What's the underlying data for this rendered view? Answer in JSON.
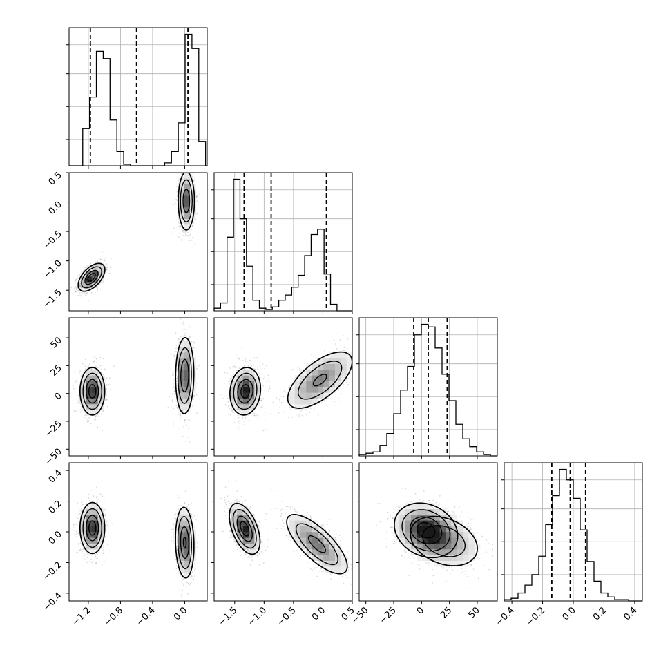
{
  "chart_data": {
    "type": "corner",
    "title": "",
    "parameters": [
      {
        "index": 0,
        "label": "",
        "range": [
          -1.44,
          0.28
        ],
        "ticks": [
          "−1.2",
          "−0.8",
          "−0.4",
          "0.0"
        ],
        "tick_values": [
          -1.2,
          -0.8,
          -0.4,
          0.0
        ]
      },
      {
        "index": 1,
        "label": "",
        "range": [
          -1.85,
          0.5
        ],
        "ticks": [
          "−1.5",
          "−1.0",
          "−0.5",
          "0.0",
          "0.5"
        ],
        "tick_values": [
          -1.5,
          -1.0,
          -0.5,
          0.0,
          0.5
        ]
      },
      {
        "index": 2,
        "label": "",
        "range": [
          -56,
          68
        ],
        "ticks": [
          "−50",
          "−25",
          "0",
          "25",
          "50"
        ],
        "tick_values": [
          -50,
          -25,
          0,
          25,
          50
        ]
      },
      {
        "index": 3,
        "label": "",
        "range": [
          -0.45,
          0.45
        ],
        "ticks": [
          "−0.4",
          "−0.2",
          "0.0",
          "0.2",
          "0.4"
        ],
        "tick_values": [
          -0.4,
          -0.2,
          0.0,
          0.2,
          0.4
        ]
      }
    ],
    "histograms": [
      {
        "param": 0,
        "bin_edges": [
          -1.44,
          -1.355,
          -1.27,
          -1.185,
          -1.1,
          -1.015,
          -0.93,
          -0.845,
          -0.76,
          -0.675,
          -0.59,
          -0.505,
          -0.42,
          -0.335,
          -0.25,
          -0.165,
          -0.08,
          0.005,
          0.09,
          0.175,
          0.26
        ],
        "counts": [
          0,
          0,
          26,
          48,
          80,
          75,
          32,
          10,
          1,
          0,
          0,
          0,
          0,
          0,
          2,
          10,
          30,
          92,
          82,
          17
        ],
        "quantiles": [
          -1.175,
          -0.6,
          0.04
        ]
      },
      {
        "param": 1,
        "bin_edges": [
          -1.85,
          -1.74,
          -1.63,
          -1.52,
          -1.41,
          -1.3,
          -1.19,
          -1.08,
          -0.97,
          -0.86,
          -0.75,
          -0.64,
          -0.53,
          -0.42,
          -0.31,
          -0.2,
          -0.09,
          0.02,
          0.13,
          0.24,
          0.35
        ],
        "counts": [
          2,
          6,
          56,
          100,
          70,
          34,
          8,
          2,
          1,
          3,
          8,
          12,
          18,
          27,
          42,
          58,
          62,
          28,
          5,
          0
        ],
        "quantiles": [
          -1.34,
          -0.88,
          0.06
        ]
      },
      {
        "param": 2,
        "bin_edges": [
          -56,
          -49.8,
          -43.6,
          -37.4,
          -31.2,
          -25,
          -18.8,
          -12.6,
          -6.4,
          -0.2,
          6,
          12.2,
          18.4,
          24.6,
          30.8,
          37,
          43.2,
          49.4,
          55.6,
          61.8,
          68
        ],
        "counts": [
          1,
          2,
          3,
          8,
          17,
          32,
          50,
          68,
          92,
          100,
          98,
          82,
          62,
          42,
          24,
          13,
          7,
          3,
          1,
          0
        ],
        "quantiles": [
          -7,
          6,
          23
        ]
      },
      {
        "param": 3,
        "bin_edges": [
          -0.45,
          -0.405,
          -0.36,
          -0.315,
          -0.27,
          -0.225,
          -0.18,
          -0.135,
          -0.09,
          -0.045,
          0.0,
          0.045,
          0.09,
          0.135,
          0.18,
          0.225,
          0.27,
          0.315,
          0.36,
          0.405,
          0.45
        ],
        "counts": [
          1,
          2,
          6,
          12,
          20,
          34,
          58,
          80,
          100,
          92,
          78,
          54,
          30,
          15,
          6,
          3,
          1,
          1,
          0,
          0
        ],
        "quantiles": [
          -0.14,
          -0.02,
          0.08
        ]
      }
    ],
    "pairs": [
      {
        "x_param": 0,
        "y_param": 1,
        "clusters": [
          {
            "mean": [
              -1.16,
              -1.28
            ],
            "sd": [
              0.07,
              0.1
            ],
            "corr": 0.55,
            "peak": 1.0
          },
          {
            "mean": [
              0.02,
              0.02
            ],
            "sd": [
              0.045,
              0.22
            ],
            "corr": 0.0,
            "peak": 0.75
          }
        ]
      },
      {
        "x_param": 0,
        "y_param": 2,
        "clusters": [
          {
            "mean": [
              -1.15,
              2
            ],
            "sd": [
              0.065,
              9
            ],
            "corr": 0.0,
            "peak": 1.0
          },
          {
            "mean": [
              0.0,
              16
            ],
            "sd": [
              0.05,
              15
            ],
            "corr": 0.05,
            "peak": 0.8
          }
        ]
      },
      {
        "x_param": 0,
        "y_param": 3,
        "clusters": [
          {
            "mean": [
              -1.15,
              0.025
            ],
            "sd": [
              0.065,
              0.07
            ],
            "corr": 0.0,
            "peak": 1.0
          },
          {
            "mean": [
              0.0,
              -0.07
            ],
            "sd": [
              0.05,
              0.1
            ],
            "corr": -0.1,
            "peak": 0.85
          }
        ]
      },
      {
        "x_param": 1,
        "y_param": 2,
        "clusters": [
          {
            "mean": [
              -1.32,
              2
            ],
            "sd": [
              0.11,
              9
            ],
            "corr": 0.1,
            "peak": 1.0
          },
          {
            "mean": [
              -0.05,
              12
            ],
            "sd": [
              0.26,
              12
            ],
            "corr": 0.65,
            "peak": 0.55
          }
        ]
      },
      {
        "x_param": 1,
        "y_param": 3,
        "clusters": [
          {
            "mean": [
              -1.33,
              0.02
            ],
            "sd": [
              0.11,
              0.07
            ],
            "corr": -0.5,
            "peak": 1.0
          },
          {
            "mean": [
              -0.1,
              -0.08
            ],
            "sd": [
              0.24,
              0.09
            ],
            "corr": -0.75,
            "peak": 0.6
          }
        ]
      },
      {
        "x_param": 2,
        "y_param": 3,
        "clusters": [
          {
            "mean": [
              4,
              0.01
            ],
            "sd": [
              12,
              0.075
            ],
            "corr": -0.2,
            "peak": 1.0
          },
          {
            "mean": [
              20,
              -0.06
            ],
            "sd": [
              15,
              0.08
            ],
            "corr": -0.3,
            "peak": 0.45
          }
        ]
      }
    ],
    "contour_levels": [
      "39.3%",
      "86.5%",
      "98.9%"
    ],
    "grid": true,
    "colors": {
      "ink": "#000000",
      "grid": "#b0b0b0",
      "points": "#555555"
    }
  }
}
